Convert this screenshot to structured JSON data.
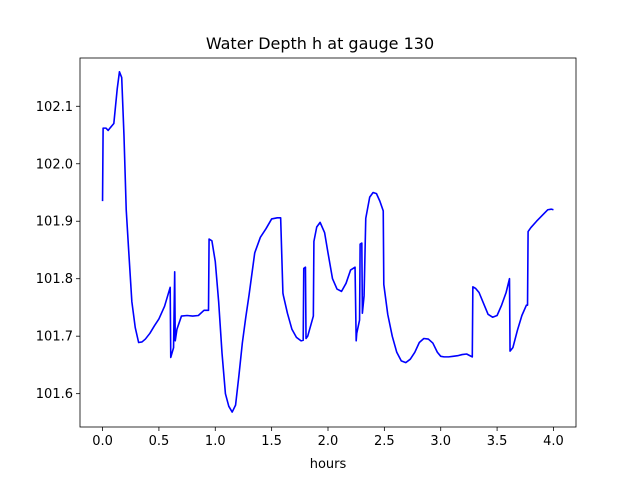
{
  "chart_data": {
    "type": "line",
    "title": "Water Depth h at gauge 130",
    "xlabel": "hours",
    "ylabel": "",
    "xlim": [
      -0.2,
      4.2
    ],
    "ylim": [
      101.542,
      102.184
    ],
    "xticks": [
      0.0,
      0.5,
      1.0,
      1.5,
      2.0,
      2.5,
      3.0,
      3.5,
      4.0
    ],
    "xtick_labels": [
      "0.0",
      "0.5",
      "1.0",
      "1.5",
      "2.0",
      "2.5",
      "3.0",
      "3.5",
      "4.0"
    ],
    "yticks": [
      101.6,
      101.7,
      101.8,
      101.9,
      102.0,
      102.1
    ],
    "ytick_labels": [
      "101.6",
      "101.7",
      "101.8",
      "101.9",
      "102.0",
      "102.1"
    ],
    "grid": false,
    "series": [
      {
        "color": "#0000ff",
        "x": [
          0.0,
          0.005,
          0.03,
          0.05,
          0.07,
          0.1,
          0.13,
          0.15,
          0.17,
          0.19,
          0.21,
          0.23,
          0.26,
          0.29,
          0.32,
          0.35,
          0.38,
          0.42,
          0.46,
          0.5,
          0.55,
          0.6,
          0.605,
          0.63,
          0.64,
          0.645,
          0.66,
          0.7,
          0.75,
          0.8,
          0.85,
          0.9,
          0.94,
          0.945,
          0.97,
          1.0,
          1.03,
          1.06,
          1.09,
          1.12,
          1.15,
          1.18,
          1.21,
          1.24,
          1.27,
          1.3,
          1.35,
          1.4,
          1.45,
          1.5,
          1.55,
          1.58,
          1.6,
          1.605,
          1.64,
          1.68,
          1.72,
          1.76,
          1.78,
          1.785,
          1.8,
          1.805,
          1.82,
          1.87,
          1.875,
          1.9,
          1.93,
          1.97,
          2.0,
          2.04,
          2.08,
          2.12,
          2.16,
          2.2,
          2.24,
          2.25,
          2.255,
          2.28,
          2.285,
          2.3,
          2.305,
          2.32,
          2.335,
          2.37,
          2.4,
          2.43,
          2.46,
          2.49,
          2.495,
          2.53,
          2.57,
          2.61,
          2.65,
          2.69,
          2.73,
          2.77,
          2.81,
          2.85,
          2.89,
          2.93,
          2.97,
          3.0,
          3.03,
          3.07,
          3.11,
          3.15,
          3.19,
          3.23,
          3.26,
          3.28,
          3.285,
          3.31,
          3.34,
          3.38,
          3.42,
          3.46,
          3.5,
          3.54,
          3.58,
          3.61,
          3.615,
          3.64,
          3.68,
          3.72,
          3.76,
          3.77,
          3.775,
          3.8,
          3.85,
          3.9,
          3.95,
          3.98,
          4.0
        ],
        "y": [
          101.935,
          102.062,
          102.062,
          102.058,
          102.063,
          102.07,
          102.13,
          102.16,
          102.15,
          102.05,
          101.92,
          101.855,
          101.76,
          101.715,
          101.689,
          101.69,
          101.695,
          101.705,
          101.718,
          101.73,
          101.752,
          101.785,
          101.663,
          101.68,
          101.812,
          101.692,
          101.712,
          101.735,
          101.736,
          101.735,
          101.736,
          101.745,
          101.745,
          101.869,
          101.866,
          101.83,
          101.76,
          101.67,
          101.6,
          101.578,
          101.568,
          101.58,
          101.632,
          101.688,
          101.732,
          101.772,
          101.845,
          101.872,
          101.887,
          101.904,
          101.906,
          101.906,
          101.775,
          101.77,
          101.74,
          101.712,
          101.698,
          101.692,
          101.693,
          101.818,
          101.82,
          101.696,
          101.7,
          101.735,
          101.865,
          101.89,
          101.898,
          101.88,
          101.845,
          101.8,
          101.782,
          101.778,
          101.792,
          101.815,
          101.82,
          101.692,
          101.705,
          101.728,
          101.86,
          101.862,
          101.74,
          101.77,
          101.905,
          101.942,
          101.95,
          101.948,
          101.935,
          101.918,
          101.79,
          101.738,
          101.7,
          101.672,
          101.657,
          101.654,
          101.66,
          101.672,
          101.689,
          101.696,
          101.695,
          101.688,
          101.672,
          101.665,
          101.664,
          101.664,
          101.665,
          101.666,
          101.668,
          101.669,
          101.666,
          101.664,
          101.786,
          101.783,
          101.776,
          101.757,
          101.738,
          101.733,
          101.736,
          101.754,
          101.776,
          101.8,
          101.674,
          101.68,
          101.71,
          101.736,
          101.754,
          101.754,
          101.882,
          101.889,
          101.9,
          101.91,
          101.92,
          101.921,
          101.92
        ]
      }
    ]
  }
}
